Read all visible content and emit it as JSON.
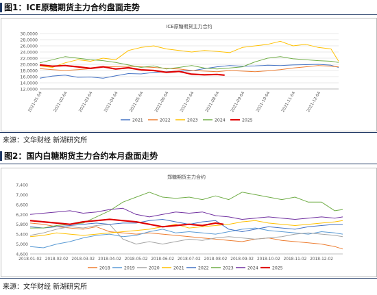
{
  "figure1": {
    "heading": "图1：ICE原糖期货主力合约盘面走势",
    "source": "来源：文华财经  新湖研究所",
    "chart_data": {
      "type": "line",
      "title": "ICE原糖期货主力合约",
      "y_tick_labels": [
        "12.0000",
        "14.0000",
        "16.0000",
        "18.0000",
        "20.0000",
        "22.0000",
        "24.0000",
        "26.0000",
        "28.0000",
        "30.0000"
      ],
      "y_ticks": [
        12,
        14,
        16,
        18,
        20,
        22,
        24,
        26,
        28,
        30
      ],
      "ylim": [
        12,
        30
      ],
      "grid": true,
      "legend_position": "bottom",
      "x_tick_labels": [
        "2021-01-04",
        "2021-02-04",
        "2021-03-04",
        "2021-04-04",
        "2021-05-04",
        "2021-06-04",
        "2021-07-04",
        "2021-08-04",
        "2021-09-04",
        "2021-10-04",
        "2021-11-04",
        "2021-12-04"
      ],
      "x_tick_pos": [
        0,
        1,
        2,
        3,
        4,
        5,
        6,
        7,
        8,
        9,
        10,
        11
      ],
      "xlim": [
        0,
        11.8
      ],
      "series": [
        {
          "name": "2021",
          "color": "#4472c4",
          "x": [
            0,
            0.5,
            1,
            1.5,
            2,
            2.5,
            3,
            3.5,
            4,
            4.5,
            5,
            5.5,
            6,
            6.5,
            7,
            7.5,
            8,
            8.5,
            9,
            9.5,
            10,
            10.5,
            11,
            11.5,
            11.8
          ],
          "values": [
            15.5,
            16.2,
            16.5,
            15.8,
            15.9,
            15.5,
            16.3,
            17.0,
            16.9,
            17.4,
            17.6,
            17.8,
            17.9,
            18.6,
            19.2,
            19.6,
            19.4,
            19.5,
            19.7,
            19.6,
            19.8,
            19.9,
            20.0,
            19.7,
            19.0
          ]
        },
        {
          "name": "2022",
          "color": "#ed7d31",
          "x": [
            0,
            0.5,
            1,
            1.5,
            2,
            2.5,
            3,
            3.5,
            4,
            4.5,
            5,
            5.5,
            6,
            6.5,
            7,
            7.5,
            8,
            8.5,
            9,
            9.5,
            10,
            10.5,
            11,
            11.5,
            11.8
          ],
          "values": [
            18.6,
            18.3,
            18.0,
            18.3,
            18.6,
            19.2,
            19.3,
            19.4,
            19.2,
            19.0,
            18.7,
            18.5,
            18.0,
            17.8,
            17.6,
            18.0,
            17.8,
            17.6,
            17.9,
            18.3,
            18.8,
            19.2,
            19.6,
            19.4,
            19.2
          ]
        },
        {
          "name": "2023",
          "color": "#ffc000",
          "x": [
            0,
            0.5,
            1,
            1.5,
            2,
            2.5,
            3,
            3.5,
            4,
            4.5,
            5,
            5.5,
            6,
            6.5,
            7,
            7.5,
            8,
            8.5,
            9,
            9.5,
            10,
            10.5,
            11,
            11.5,
            11.8
          ],
          "values": [
            19.5,
            19.0,
            20.5,
            21.5,
            21.0,
            22.0,
            21.5,
            24.5,
            25.5,
            26.0,
            25.0,
            24.5,
            24.0,
            24.5,
            24.2,
            23.8,
            25.5,
            26.0,
            26.5,
            27.5,
            26.0,
            26.5,
            25.5,
            25.0,
            21.0
          ]
        },
        {
          "name": "2024",
          "color": "#70ad47",
          "x": [
            0,
            0.5,
            1,
            1.5,
            2,
            2.5,
            3,
            3.5,
            4,
            4.5,
            5,
            5.5,
            6,
            6.5,
            7,
            7.5,
            8,
            8.5,
            9,
            9.5,
            10,
            10.5,
            11,
            11.5,
            11.8
          ],
          "values": [
            20.5,
            21.5,
            22.5,
            22.0,
            21.5,
            21.2,
            20.6,
            19.8,
            19.0,
            19.5,
            18.5,
            19.0,
            19.6,
            18.8,
            18.5,
            18.8,
            19.2,
            20.8,
            22.0,
            22.5,
            21.8,
            21.5,
            21.2,
            21.0,
            20.6
          ]
        },
        {
          "name": "2025",
          "color": "#e00000",
          "width": 2.2,
          "x": [
            0,
            0.5,
            1,
            1.5,
            2,
            2.5,
            3,
            3.5,
            4,
            4.5,
            5,
            5.5,
            6,
            6.5,
            7,
            7.3
          ],
          "values": [
            19.8,
            19.4,
            19.6,
            19.2,
            18.7,
            19.2,
            18.5,
            18.9,
            18.2,
            18.0,
            17.4,
            17.7,
            16.8,
            16.6,
            16.7,
            16.5
          ]
        }
      ]
    }
  },
  "figure2": {
    "heading": "图2：国内白糖期货主力合约本月盘面走势",
    "source": "来源：文华财经  新湖研究所",
    "chart_data": {
      "type": "line",
      "title": "郑糖期货主力合约",
      "y_tick_labels": [
        "4,600",
        "5,000",
        "5,400",
        "5,800",
        "6,200",
        "6,600",
        "7,000",
        "7,400"
      ],
      "y_ticks": [
        4600,
        5000,
        5400,
        5800,
        6200,
        6600,
        7000,
        7400
      ],
      "ylim": [
        4600,
        7400
      ],
      "grid": false,
      "legend_position": "bottom",
      "x_tick_labels": [
        "2018-01-02",
        "2018-02-02",
        "2018-03-02",
        "2018-04-02",
        "2018-05-02",
        "2018-06-02",
        "2018-07-02",
        "2018-08-02",
        "2018-09-02",
        "2018-10-02",
        "2018-11-02",
        "2018-12-02"
      ],
      "x_tick_pos": [
        0,
        1,
        2,
        3,
        4,
        5,
        6,
        7,
        8,
        9,
        10,
        11
      ],
      "xlim": [
        0,
        11.8
      ],
      "series": [
        {
          "name": "2018",
          "color": "#ed7d31",
          "x": [
            0,
            0.5,
            1,
            1.5,
            2,
            2.5,
            3,
            3.5,
            4,
            4.5,
            5,
            5.5,
            6,
            6.5,
            7,
            7.5,
            8,
            8.5,
            9,
            9.5,
            10,
            10.5,
            11,
            11.5,
            11.8
          ],
          "values": [
            5850,
            5800,
            5700,
            5650,
            5600,
            5700,
            5500,
            5450,
            5400,
            5450,
            5400,
            5350,
            5300,
            5250,
            5200,
            5150,
            5100,
            5200,
            5250,
            5150,
            5100,
            5050,
            5000,
            4900,
            4800
          ]
        },
        {
          "name": "2019",
          "color": "#5b9bd5",
          "x": [
            0,
            0.5,
            1,
            1.5,
            2,
            2.5,
            3,
            3.5,
            4,
            4.5,
            5,
            5.5,
            6,
            6.5,
            7,
            7.5,
            8,
            8.5,
            9,
            9.5,
            10,
            10.5,
            11,
            11.5,
            11.8
          ],
          "values": [
            4900,
            4850,
            5000,
            5100,
            5250,
            5350,
            5400,
            5300,
            5350,
            5500,
            5600,
            5450,
            5500,
            5450,
            5400,
            5500,
            5600,
            5650,
            5550,
            5500,
            5450,
            5400,
            5500,
            5450,
            5400
          ]
        },
        {
          "name": "2020",
          "color": "#a5a5a5",
          "x": [
            0,
            0.5,
            1,
            1.5,
            2,
            2.5,
            3,
            3.5,
            4,
            4.5,
            5,
            5.5,
            6,
            6.5,
            7,
            7.5,
            8,
            8.5,
            9,
            9.5,
            10,
            10.5,
            11,
            11.5,
            11.8
          ],
          "values": [
            5350,
            5450,
            5600,
            5700,
            5650,
            5750,
            5800,
            5200,
            5000,
            5100,
            5000,
            5100,
            5200,
            5150,
            5250,
            5300,
            5250,
            5200,
            5250,
            5300,
            5400,
            5450,
            5400,
            5350,
            5300
          ]
        },
        {
          "name": "2021",
          "color": "#ffc000",
          "x": [
            0,
            0.5,
            1,
            1.5,
            2,
            2.5,
            3,
            3.5,
            4,
            4.5,
            5,
            5.5,
            6,
            6.5,
            7,
            7.5,
            8,
            8.5,
            9,
            9.5,
            10,
            10.5,
            11,
            11.5,
            11.8
          ],
          "values": [
            5300,
            5350,
            5450,
            5400,
            5350,
            5400,
            5450,
            5500,
            5550,
            5600,
            5700,
            5800,
            5650,
            5700,
            5750,
            5800,
            5900,
            5950,
            5850,
            5800,
            5750,
            5800,
            5850,
            5900,
            5950
          ]
        },
        {
          "name": "2022",
          "color": "#4472c4",
          "x": [
            0,
            0.5,
            1,
            1.5,
            2,
            2.5,
            3,
            3.5,
            4,
            4.5,
            5,
            5.5,
            6,
            6.5,
            7,
            7.5,
            8,
            8.5,
            9,
            9.5,
            10,
            10.5,
            11,
            11.5,
            11.8
          ],
          "values": [
            5700,
            5650,
            5700,
            5750,
            5800,
            5850,
            5800,
            5850,
            5850,
            5950,
            6000,
            5900,
            5800,
            5900,
            5950,
            5600,
            5500,
            5600,
            5700,
            5650,
            5600,
            5700,
            5750,
            5800,
            5800
          ]
        },
        {
          "name": "2023",
          "color": "#70ad47",
          "x": [
            0,
            0.5,
            1,
            1.5,
            2,
            2.5,
            3,
            3.5,
            4,
            4.5,
            5,
            5.5,
            6,
            6.5,
            7,
            7.5,
            8,
            8.5,
            9,
            9.5,
            10,
            10.5,
            11,
            11.5,
            11.8
          ],
          "values": [
            5650,
            5650,
            5750,
            5800,
            5850,
            6100,
            6350,
            6700,
            6900,
            7100,
            6900,
            6850,
            6900,
            6800,
            6950,
            6800,
            7100,
            7000,
            6900,
            6800,
            6900,
            6700,
            6700,
            6350,
            6400
          ]
        },
        {
          "name": "2024",
          "color": "#7030a0",
          "x": [
            0,
            0.5,
            1,
            1.5,
            2,
            2.5,
            3,
            3.5,
            4,
            4.5,
            5,
            5.5,
            6,
            6.5,
            7,
            7.5,
            8,
            8.5,
            9,
            9.5,
            10,
            10.5,
            11,
            11.5,
            11.8
          ],
          "values": [
            6200,
            6250,
            6300,
            6350,
            6250,
            6300,
            6400,
            6450,
            6200,
            6100,
            6200,
            6300,
            6250,
            6300,
            6150,
            6100,
            6000,
            6050,
            6100,
            6050,
            6000,
            6050,
            6100,
            6050,
            6100
          ]
        },
        {
          "name": "2025",
          "color": "#e00000",
          "width": 2.2,
          "x": [
            0,
            0.5,
            1,
            1.5,
            2,
            2.5,
            3,
            3.5,
            4,
            4.5,
            5,
            5.5,
            6,
            6.5,
            7,
            7.3
          ],
          "values": [
            5950,
            5900,
            5850,
            5800,
            5900,
            5950,
            6000,
            5950,
            5900,
            5800,
            5700,
            5750,
            5800,
            5750,
            5850,
            5800
          ]
        }
      ]
    }
  }
}
